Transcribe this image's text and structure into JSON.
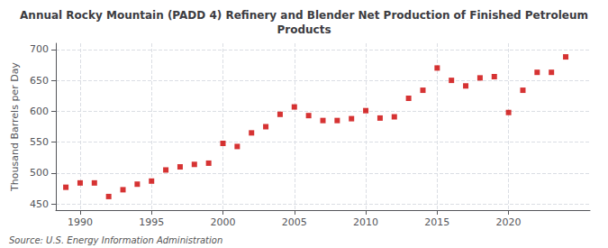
{
  "chart_data": {
    "type": "scatter",
    "title": "Annual Rocky Mountain (PADD 4) Refinery and Blender Net Production of Finished Petroleum\nProducts",
    "ylabel": "Thousand Barrels per Day",
    "source": "Source: U.S. Energy Information Administration",
    "color": "#cc0000",
    "marker": "square",
    "grid": true,
    "xlim": [
      1988.3,
      2025.7
    ],
    "xticks": [
      1990,
      1995,
      2000,
      2005,
      2010,
      2015,
      2020
    ],
    "ylim": [
      440,
      710
    ],
    "yticks": [
      450,
      500,
      550,
      600,
      650,
      700
    ],
    "x": [
      1989,
      1990,
      1991,
      1992,
      1993,
      1994,
      1995,
      1996,
      1997,
      1998,
      1999,
      2000,
      2001,
      2002,
      2003,
      2004,
      2005,
      2006,
      2007,
      2008,
      2009,
      2010,
      2011,
      2012,
      2013,
      2014,
      2015,
      2016,
      2017,
      2018,
      2019,
      2020,
      2021,
      2022,
      2023,
      2024
    ],
    "values": [
      477,
      484,
      484,
      462,
      473,
      482,
      487,
      505,
      510,
      514,
      516,
      548,
      543,
      565,
      575,
      595,
      607,
      593,
      585,
      585,
      588,
      601,
      589,
      591,
      621,
      634,
      670,
      650,
      641,
      654,
      656,
      598,
      634,
      663,
      663,
      688
    ]
  }
}
